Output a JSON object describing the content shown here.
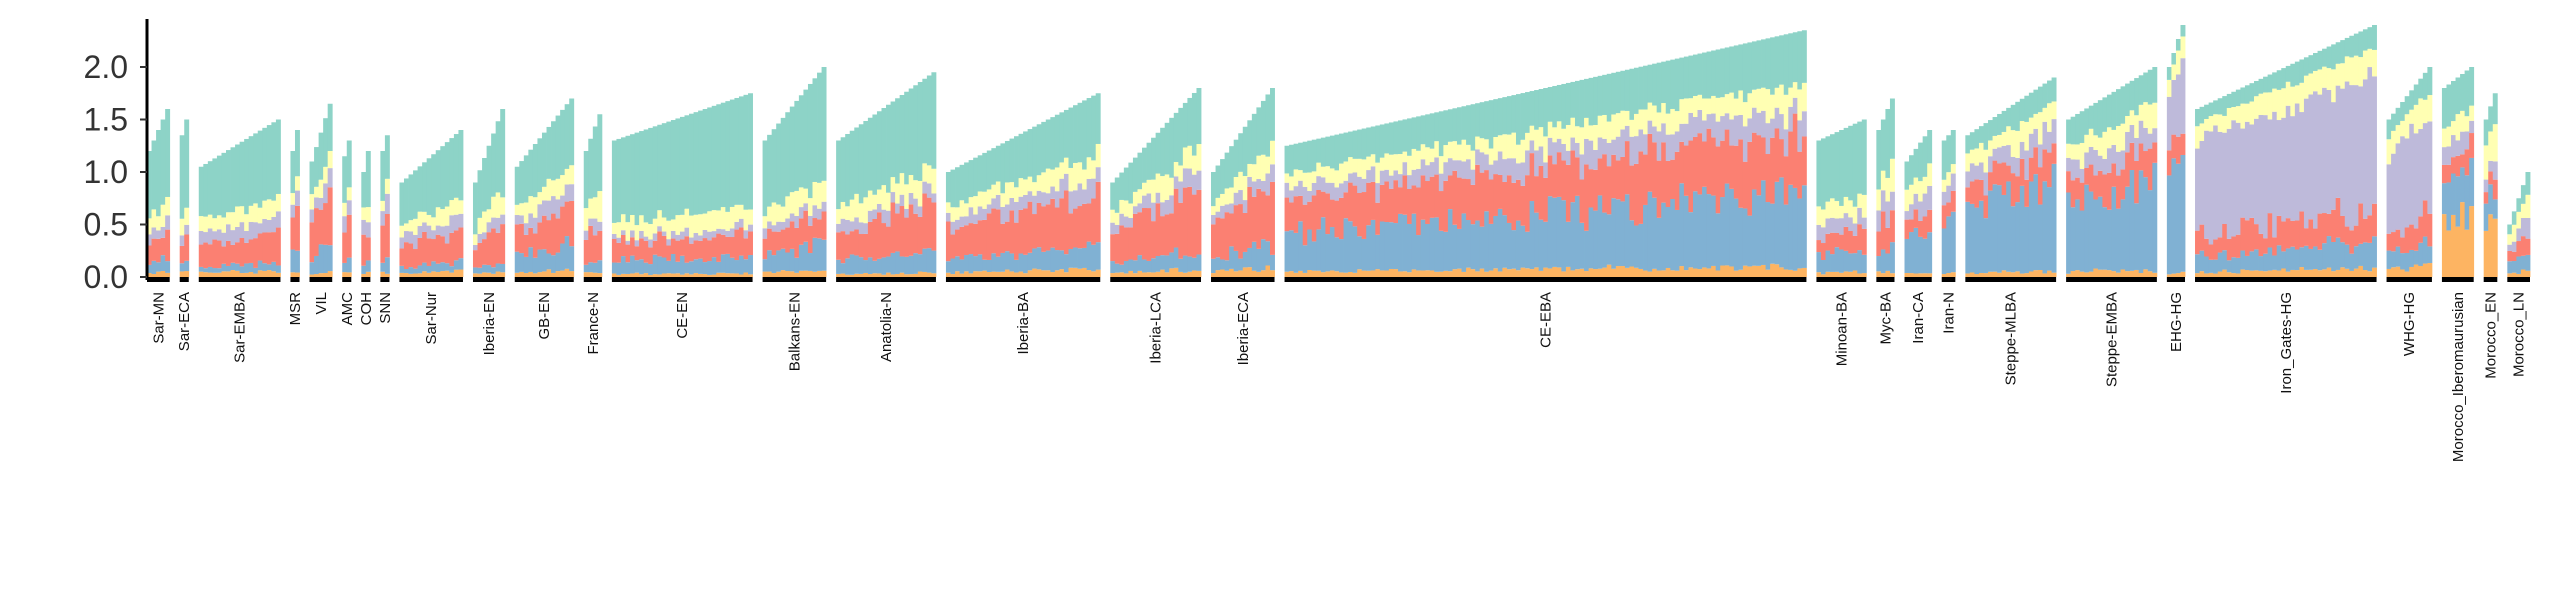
{
  "chart_data": {
    "type": "bar",
    "stacked": true,
    "title": "",
    "xlabel": "",
    "ylabel": "",
    "ylim": [
      0,
      2.4
    ],
    "yticks": [
      "0.0",
      "0.5",
      "1.0",
      "1.5",
      "2.0"
    ],
    "grid": false,
    "legend": "none",
    "component_colors": [
      "#fdb462",
      "#80b1d3",
      "#fb8072",
      "#bebada",
      "#ffffb3",
      "#8dd3c7"
    ],
    "groups": [
      {
        "label": "Sar-MN",
        "n": 5,
        "range": [
          1.2,
          1.6
        ],
        "mix": [
          0.03,
          0.08,
          0.15,
          0.07,
          0.12,
          0.55
        ]
      },
      {
        "label": "Sar-ECA",
        "n": 2,
        "range": [
          1.35,
          1.5
        ],
        "mix": [
          0.03,
          0.07,
          0.15,
          0.08,
          0.12,
          0.55
        ]
      },
      {
        "label": "Sar-EMBA",
        "n": 18,
        "range": [
          1.05,
          1.5
        ],
        "mix": [
          0.04,
          0.05,
          0.2,
          0.1,
          0.12,
          0.49
        ]
      },
      {
        "label": "MSR",
        "n": 2,
        "range": [
          1.2,
          1.4
        ],
        "mix": [
          0.03,
          0.2,
          0.25,
          0.1,
          0.12,
          0.3
        ]
      },
      {
        "label": "VIL",
        "n": 5,
        "range": [
          1.1,
          1.65
        ],
        "mix": [
          0.03,
          0.15,
          0.3,
          0.1,
          0.12,
          0.3
        ]
      },
      {
        "label": "AMC",
        "n": 2,
        "range": [
          1.15,
          1.3
        ],
        "mix": [
          0.03,
          0.1,
          0.3,
          0.12,
          0.1,
          0.35
        ]
      },
      {
        "label": "COH",
        "n": 2,
        "range": [
          1.0,
          1.2
        ],
        "mix": [
          0.03,
          0.1,
          0.25,
          0.12,
          0.12,
          0.38
        ]
      },
      {
        "label": "SNN",
        "n": 2,
        "range": [
          1.2,
          1.35
        ],
        "mix": [
          0.03,
          0.1,
          0.3,
          0.12,
          0.1,
          0.35
        ]
      },
      {
        "label": "Sar-Nur",
        "n": 14,
        "range": [
          0.9,
          1.4
        ],
        "mix": [
          0.04,
          0.06,
          0.22,
          0.1,
          0.12,
          0.46
        ]
      },
      {
        "label": "Iberia-EN",
        "n": 7,
        "range": [
          0.9,
          1.6
        ],
        "mix": [
          0.03,
          0.06,
          0.2,
          0.08,
          0.15,
          0.48
        ]
      },
      {
        "label": "GB-EN",
        "n": 13,
        "range": [
          1.05,
          1.7
        ],
        "mix": [
          0.04,
          0.15,
          0.22,
          0.1,
          0.12,
          0.37
        ]
      },
      {
        "label": "France-N",
        "n": 4,
        "range": [
          1.2,
          1.55
        ],
        "mix": [
          0.03,
          0.06,
          0.22,
          0.08,
          0.15,
          0.46
        ]
      },
      {
        "label": "CE-EN",
        "n": 31,
        "range": [
          1.3,
          1.75
        ],
        "mix": [
          0.02,
          0.1,
          0.13,
          0.04,
          0.1,
          0.61
        ]
      },
      {
        "label": "Balkans-EN",
        "n": 14,
        "range": [
          1.3,
          2.0
        ],
        "mix": [
          0.03,
          0.13,
          0.13,
          0.06,
          0.12,
          0.53
        ]
      },
      {
        "label": "Anatolia-N",
        "n": 22,
        "range": [
          1.3,
          1.95
        ],
        "mix": [
          0.02,
          0.1,
          0.22,
          0.07,
          0.12,
          0.47
        ]
      },
      {
        "label": "Iberia-BA",
        "n": 34,
        "range": [
          1.0,
          1.75
        ],
        "mix": [
          0.04,
          0.12,
          0.3,
          0.1,
          0.12,
          0.32
        ]
      },
      {
        "label": "Iberia-LCA",
        "n": 20,
        "range": [
          0.9,
          1.8
        ],
        "mix": [
          0.04,
          0.1,
          0.33,
          0.1,
          0.12,
          0.31
        ]
      },
      {
        "label": "Iberia-ECA",
        "n": 14,
        "range": [
          1.0,
          1.8
        ],
        "mix": [
          0.05,
          0.13,
          0.32,
          0.08,
          0.12,
          0.3
        ]
      },
      {
        "label": "CE-EBA",
        "n": 115,
        "range": [
          1.25,
          2.35
        ],
        "mix": [
          0.04,
          0.3,
          0.25,
          0.1,
          0.1,
          0.21
        ]
      },
      {
        "label": "Minoan-BA",
        "n": 11,
        "range": [
          1.3,
          1.5
        ],
        "mix": [
          0.03,
          0.14,
          0.13,
          0.1,
          0.12,
          0.48
        ]
      },
      {
        "label": "Myc-BA",
        "n": 4,
        "range": [
          1.4,
          1.7
        ],
        "mix": [
          0.03,
          0.14,
          0.2,
          0.12,
          0.14,
          0.37
        ]
      },
      {
        "label": "Iran-CA",
        "n": 6,
        "range": [
          1.1,
          1.4
        ],
        "mix": [
          0.03,
          0.3,
          0.15,
          0.12,
          0.15,
          0.25
        ]
      },
      {
        "label": "Iran-N",
        "n": 3,
        "range": [
          1.3,
          1.4
        ],
        "mix": [
          0.03,
          0.35,
          0.15,
          0.12,
          0.1,
          0.25
        ]
      },
      {
        "label": "Steppe-MLBA",
        "n": 20,
        "range": [
          1.35,
          1.9
        ],
        "mix": [
          0.03,
          0.45,
          0.15,
          0.12,
          0.12,
          0.13
        ]
      },
      {
        "label": "Steppe-EMBA",
        "n": 20,
        "range": [
          1.5,
          2.0
        ],
        "mix": [
          0.03,
          0.45,
          0.15,
          0.1,
          0.1,
          0.17
        ]
      },
      {
        "label": "EHG-HG",
        "n": 4,
        "range": [
          2.0,
          2.4
        ],
        "mix": [
          0.02,
          0.42,
          0.1,
          0.3,
          0.1,
          0.06
        ]
      },
      {
        "label": "Iron_Gates-HG",
        "n": 40,
        "range": [
          1.6,
          2.4
        ],
        "mix": [
          0.03,
          0.1,
          0.13,
          0.55,
          0.1,
          0.09
        ]
      },
      {
        "label": "WHG-HG",
        "n": 10,
        "range": [
          1.5,
          2.0
        ],
        "mix": [
          0.05,
          0.1,
          0.12,
          0.5,
          0.12,
          0.11
        ]
      },
      {
        "label": "Morocco_Iberomaurusian",
        "n": 7,
        "range": [
          1.8,
          2.0
        ],
        "mix": [
          0.3,
          0.2,
          0.1,
          0.1,
          0.1,
          0.2
        ]
      },
      {
        "label": "Morocco_EN",
        "n": 3,
        "range": [
          1.5,
          1.75
        ],
        "mix": [
          0.3,
          0.15,
          0.12,
          0.08,
          0.18,
          0.17
        ]
      },
      {
        "label": "Morocco_LN",
        "n": 5,
        "range": [
          0.5,
          1.0
        ],
        "mix": [
          0.06,
          0.2,
          0.2,
          0.15,
          0.18,
          0.21
        ]
      }
    ]
  }
}
